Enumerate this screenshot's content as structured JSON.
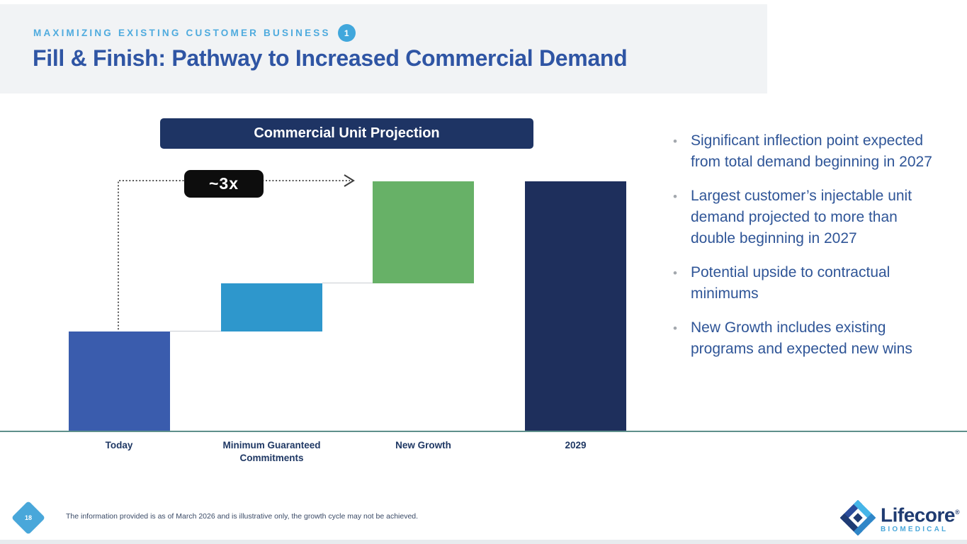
{
  "slide": {
    "eyebrow": "MAXIMIZING EXISTING CUSTOMER BUSINESS",
    "eyebrow_badge": "1",
    "title": "Fill & Finish: Pathway to Increased Commercial Demand"
  },
  "chart_data": {
    "type": "waterfall",
    "title": "Commercial Unit Projection",
    "categories": [
      "Today",
      "Minimum Guaranteed Commitments",
      "New Growth",
      "2029"
    ],
    "segments": [
      {
        "label": "Today",
        "kind": "base",
        "relative_value": 1.0,
        "color": "#3A5CAD"
      },
      {
        "label": "Minimum Guaranteed Commitments",
        "kind": "increment",
        "relative_value": 0.48,
        "color": "#2E97CC"
      },
      {
        "label": "New Growth",
        "kind": "increment",
        "relative_value": 1.02,
        "color": "#67B167"
      },
      {
        "label": "2029",
        "kind": "total",
        "relative_value": 2.5,
        "color": "#1E2F5C"
      }
    ],
    "annotation": "~3x",
    "value_axis": "none (illustrative, unitless)",
    "legend": "none",
    "grid": false
  },
  "bullets": [
    "Significant inflection point expected from total demand beginning in 2027",
    "Largest customer’s injectable unit demand projected to more than double beginning in 2027",
    "Potential upside to contractual minimums",
    "New Growth includes existing programs and expected new wins"
  ],
  "footer": {
    "page_number": "18",
    "footnote": "The information provided is as of March 2026 and is illustrative only, the growth cycle may not be achieved.",
    "logo_name": "Lifecore",
    "logo_trademark": "®",
    "logo_sub": "BIOMEDICAL"
  },
  "colors": {
    "header_band": "#f1f3f5",
    "eyebrow_blue": "#4FABDE",
    "title_blue": "#2F55A4",
    "banner_navy": "#1E3464",
    "bar_today": "#3A5CAD",
    "bar_minimum": "#2E97CC",
    "bar_new_growth": "#67B167",
    "bar_2029": "#1E2F5C",
    "baseline_teal": "#5E8F8B",
    "bullet_text": "#2F5597",
    "page_diamond": "#49A7DA",
    "annotation_bg": "#0d0d0d"
  }
}
